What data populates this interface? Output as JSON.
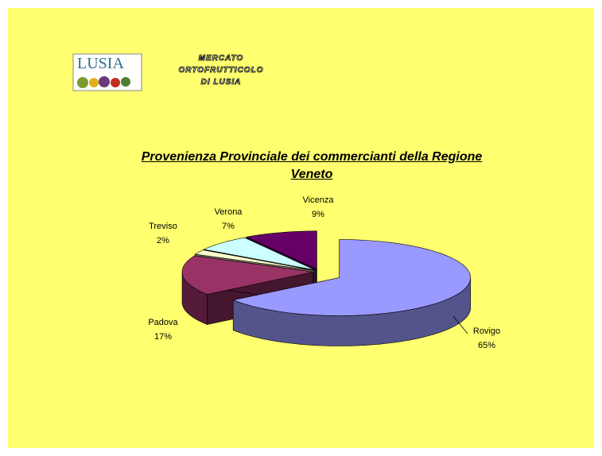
{
  "header": {
    "logo": "LUSIA",
    "lines": [
      "MERCATO",
      "ORTOFRUTTICOLO",
      "DI LUSIA"
    ]
  },
  "chart_data": {
    "type": "pie3d",
    "title": "Provenienza Provinciale dei commercianti della Regione Veneto",
    "categories": [
      "Rovigo",
      "Padova",
      "Treviso",
      "Verona",
      "Vicenza"
    ],
    "values": [
      65,
      17,
      2,
      7,
      9
    ],
    "value_labels": [
      "65%",
      "17%",
      "2%",
      "7%",
      "9%"
    ],
    "colors": [
      "#9999ff",
      "#993366",
      "#ffffcc",
      "#ccffff",
      "#660066"
    ]
  }
}
